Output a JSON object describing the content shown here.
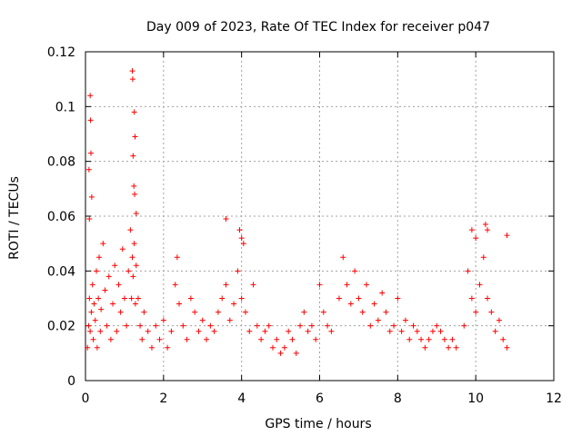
{
  "chart_data": {
    "type": "scatter",
    "title": "Day 009 of 2023, Rate Of TEC Index for receiver p047",
    "xlabel": "GPS time / hours",
    "ylabel": "ROTI / TECUs",
    "xlim": [
      0,
      12
    ],
    "ylim": [
      0,
      0.12
    ],
    "xticks": [
      0,
      2,
      4,
      6,
      8,
      10,
      12
    ],
    "yticks": [
      0,
      0.02,
      0.04,
      0.06,
      0.08,
      0.1,
      0.12
    ],
    "xtick_labels": [
      "0",
      "2",
      "4",
      "6",
      "8",
      "10",
      "12"
    ],
    "ytick_labels": [
      "0",
      "0.02",
      "0.04",
      "0.06",
      "0.08",
      "0.1",
      "0.12"
    ],
    "grid": true,
    "marker": "+",
    "color": "#ff0000",
    "series": [
      {
        "name": "ROTI",
        "x": [
          0.05,
          0.08,
          0.1,
          0.12,
          0.15,
          0.18,
          0.2,
          0.22,
          0.25,
          0.28,
          0.3,
          0.33,
          0.35,
          0.38,
          0.4,
          0.45,
          0.5,
          0.55,
          0.6,
          0.65,
          0.7,
          0.75,
          0.8,
          0.85,
          0.9,
          0.95,
          1.0,
          1.05,
          1.1,
          1.15,
          1.18,
          1.2,
          1.22,
          1.25,
          1.28,
          1.3,
          1.35,
          1.4,
          1.45,
          1.5,
          1.6,
          1.7,
          1.8,
          1.9,
          2.0,
          2.1,
          2.2,
          2.3,
          2.35,
          2.4,
          2.5,
          2.6,
          2.7,
          2.8,
          2.9,
          3.0,
          3.1,
          3.2,
          3.3,
          3.4,
          3.5,
          3.6,
          3.7,
          3.8,
          3.9,
          4.0,
          4.05,
          4.1,
          4.2,
          4.3,
          4.4,
          4.5,
          4.6,
          4.7,
          4.8,
          4.9,
          5.0,
          5.1,
          5.2,
          5.3,
          5.4,
          5.5,
          5.6,
          5.7,
          5.8,
          5.9,
          6.0,
          6.1,
          6.2,
          6.3,
          6.5,
          6.6,
          6.7,
          6.8,
          6.9,
          7.0,
          7.1,
          7.2,
          7.3,
          7.4,
          7.5,
          7.6,
          7.7,
          7.8,
          7.9,
          8.0,
          8.1,
          8.2,
          8.3,
          8.4,
          8.5,
          8.6,
          8.7,
          8.8,
          8.9,
          9.0,
          9.1,
          9.2,
          9.3,
          9.4,
          9.5,
          9.7,
          9.8,
          9.9,
          10.0,
          10.1,
          10.2,
          10.3,
          10.4,
          10.5,
          10.6,
          10.7,
          10.8,
          0.12,
          0.13,
          0.14,
          0.16,
          0.1,
          0.09,
          1.2,
          1.21,
          1.25,
          1.27,
          1.22,
          1.24,
          1.26,
          1.3,
          3.6,
          3.95,
          4.0,
          10.25,
          10.3,
          10.8,
          10.0,
          9.9
        ],
        "y": [
          0.012,
          0.02,
          0.03,
          0.018,
          0.025,
          0.035,
          0.015,
          0.028,
          0.022,
          0.04,
          0.012,
          0.03,
          0.045,
          0.018,
          0.026,
          0.05,
          0.033,
          0.02,
          0.038,
          0.015,
          0.028,
          0.042,
          0.018,
          0.035,
          0.025,
          0.048,
          0.03,
          0.02,
          0.04,
          0.055,
          0.03,
          0.045,
          0.038,
          0.05,
          0.028,
          0.042,
          0.03,
          0.02,
          0.015,
          0.025,
          0.018,
          0.012,
          0.02,
          0.015,
          0.022,
          0.012,
          0.018,
          0.035,
          0.045,
          0.028,
          0.02,
          0.015,
          0.03,
          0.025,
          0.018,
          0.022,
          0.015,
          0.02,
          0.018,
          0.025,
          0.03,
          0.035,
          0.022,
          0.028,
          0.04,
          0.03,
          0.05,
          0.025,
          0.018,
          0.035,
          0.02,
          0.015,
          0.018,
          0.02,
          0.012,
          0.015,
          0.01,
          0.012,
          0.018,
          0.015,
          0.01,
          0.02,
          0.025,
          0.018,
          0.02,
          0.015,
          0.035,
          0.025,
          0.02,
          0.018,
          0.03,
          0.045,
          0.035,
          0.028,
          0.04,
          0.03,
          0.025,
          0.035,
          0.02,
          0.028,
          0.022,
          0.032,
          0.025,
          0.018,
          0.02,
          0.03,
          0.018,
          0.022,
          0.015,
          0.02,
          0.018,
          0.015,
          0.012,
          0.015,
          0.018,
          0.02,
          0.018,
          0.015,
          0.012,
          0.015,
          0.012,
          0.02,
          0.04,
          0.03,
          0.025,
          0.035,
          0.045,
          0.03,
          0.025,
          0.018,
          0.022,
          0.015,
          0.012,
          0.104,
          0.095,
          0.083,
          0.067,
          0.059,
          0.077,
          0.113,
          0.11,
          0.098,
          0.089,
          0.082,
          0.071,
          0.068,
          0.061,
          0.059,
          0.055,
          0.052,
          0.057,
          0.055,
          0.053,
          0.052,
          0.055
        ]
      }
    ]
  }
}
